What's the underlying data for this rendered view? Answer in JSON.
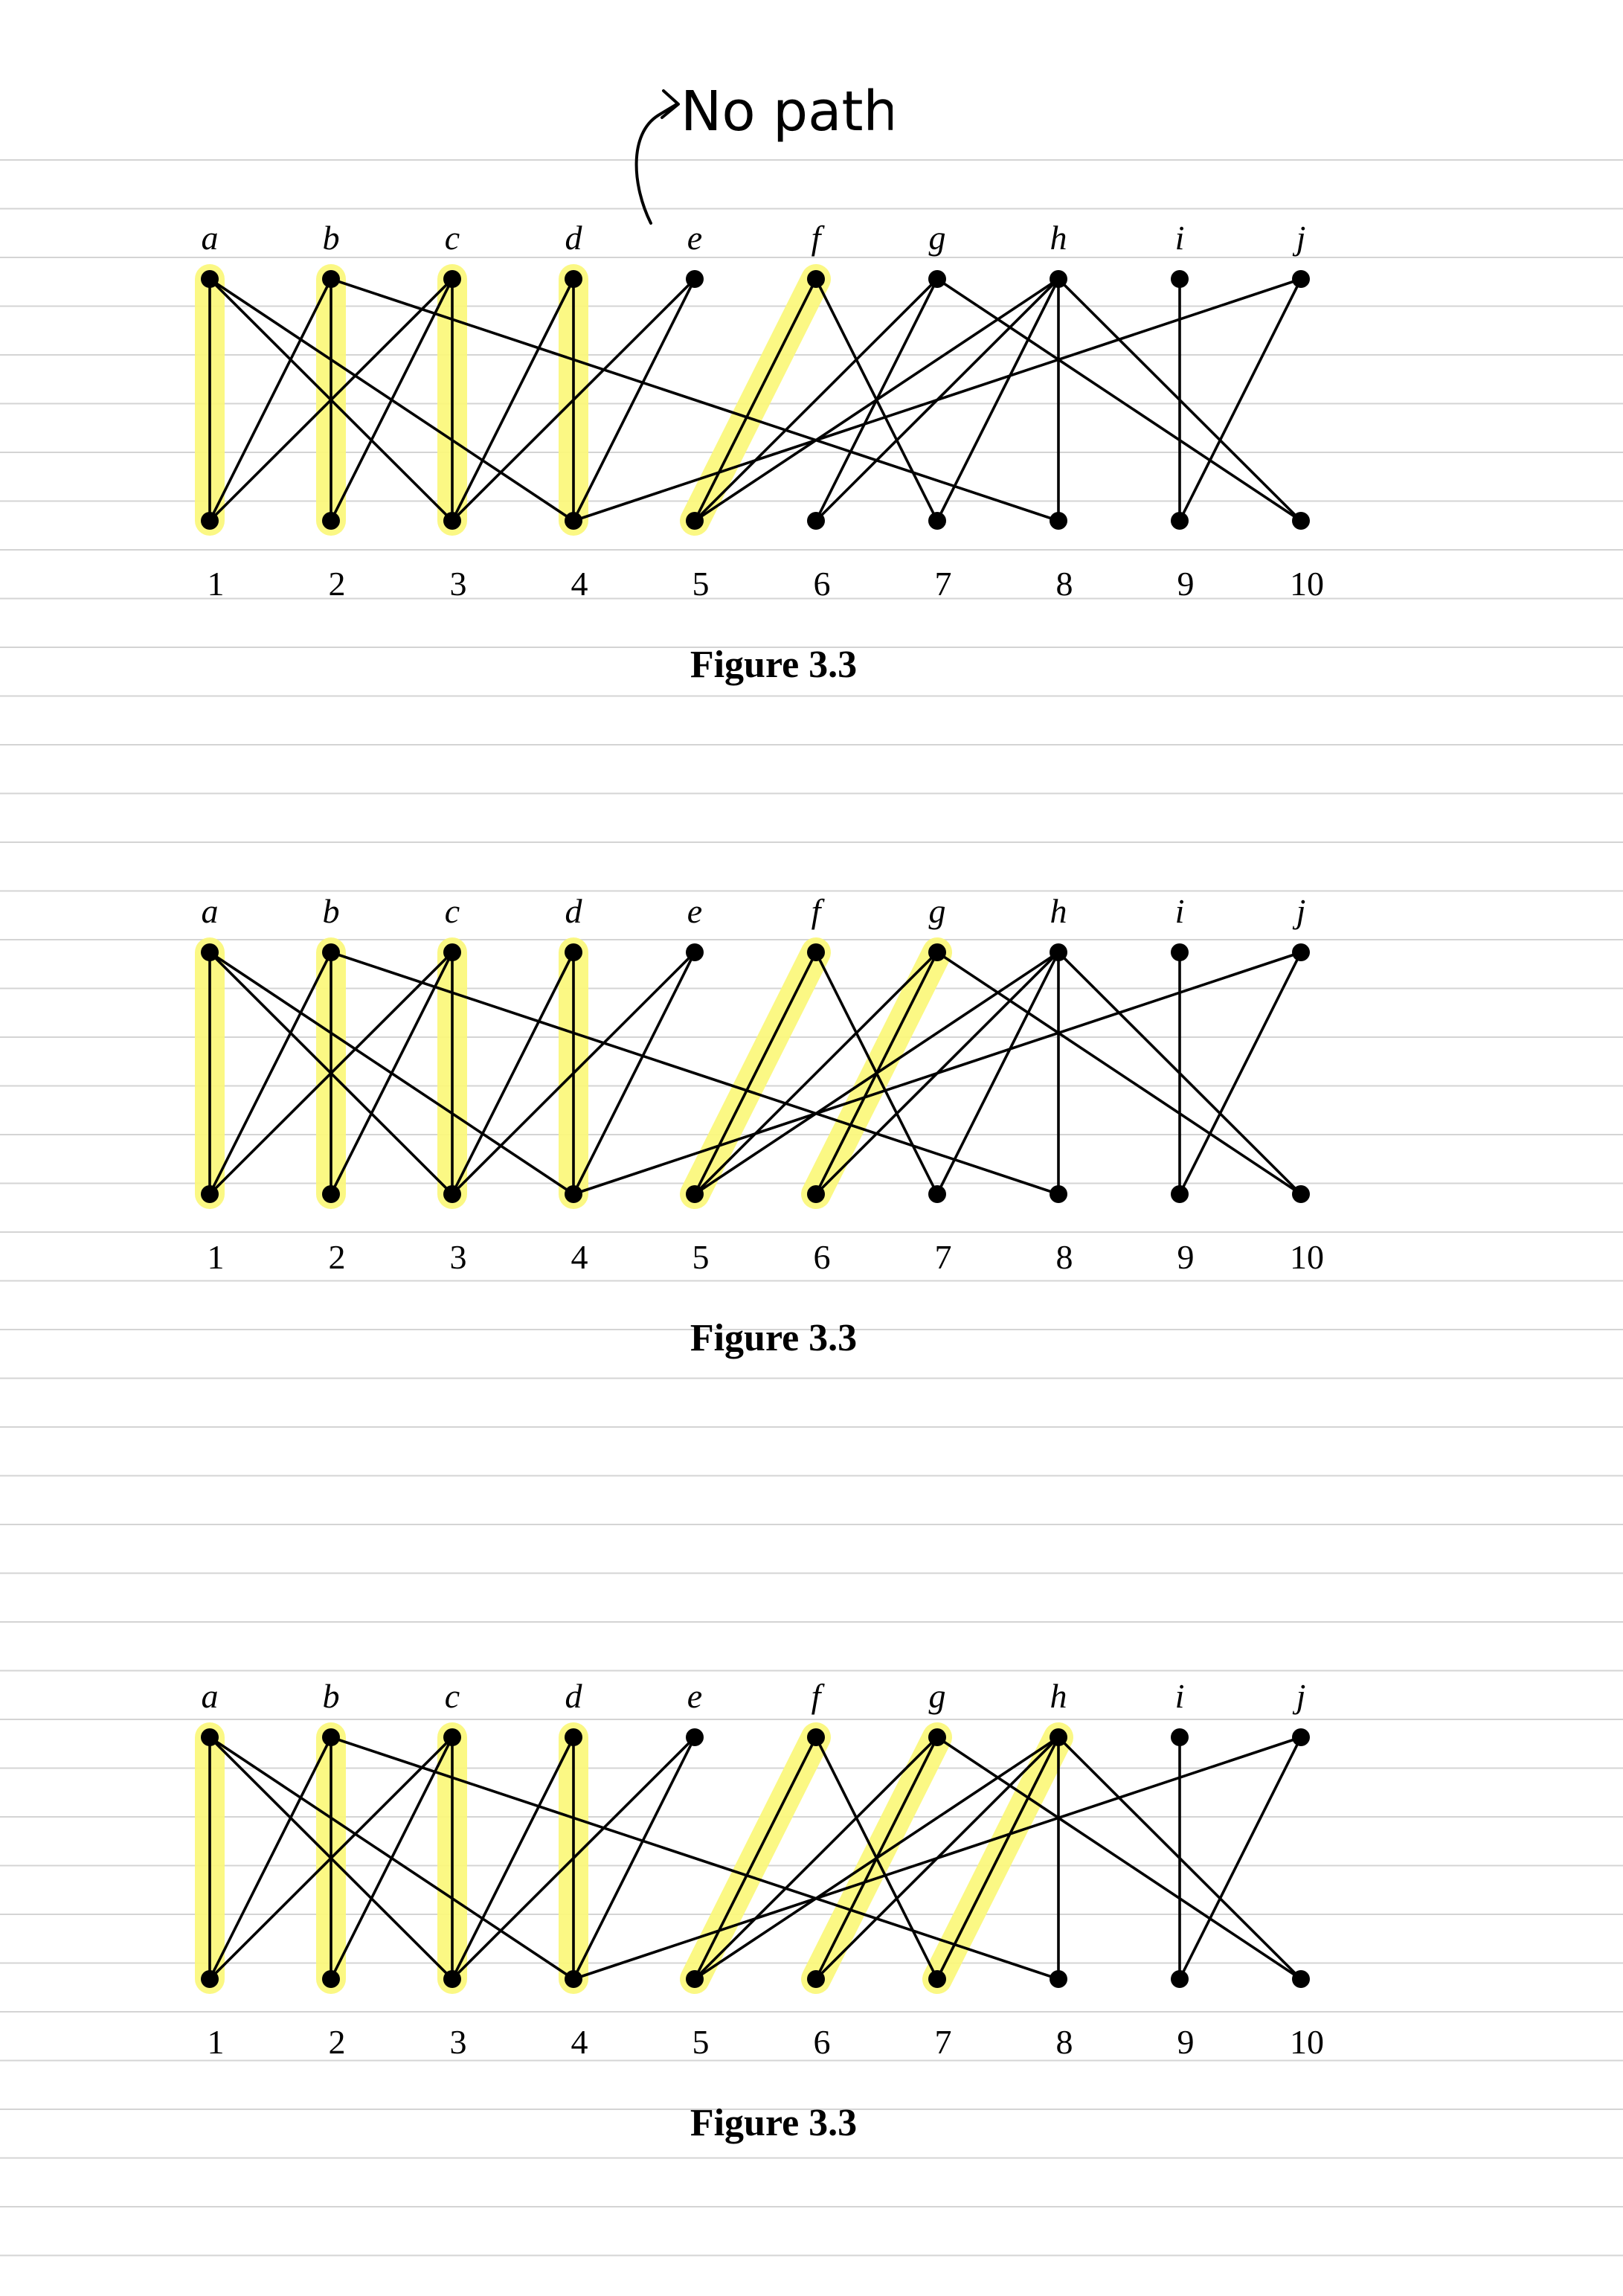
{
  "annotation": {
    "text": "No path"
  },
  "graph": {
    "top_labels": [
      "a",
      "b",
      "c",
      "d",
      "e",
      "f",
      "g",
      "h",
      "i",
      "j"
    ],
    "bottom_labels": [
      "1",
      "2",
      "3",
      "4",
      "5",
      "6",
      "7",
      "8",
      "9",
      "10"
    ],
    "edges": [
      [
        "a",
        "1"
      ],
      [
        "a",
        "3"
      ],
      [
        "a",
        "4"
      ],
      [
        "b",
        "1"
      ],
      [
        "b",
        "2"
      ],
      [
        "b",
        "8"
      ],
      [
        "c",
        "1"
      ],
      [
        "c",
        "2"
      ],
      [
        "c",
        "3"
      ],
      [
        "d",
        "3"
      ],
      [
        "d",
        "4"
      ],
      [
        "e",
        "3"
      ],
      [
        "e",
        "4"
      ],
      [
        "f",
        "5"
      ],
      [
        "f",
        "7"
      ],
      [
        "g",
        "5"
      ],
      [
        "g",
        "6"
      ],
      [
        "g",
        "10"
      ],
      [
        "h",
        "5"
      ],
      [
        "h",
        "6"
      ],
      [
        "h",
        "7"
      ],
      [
        "h",
        "8"
      ],
      [
        "h",
        "10"
      ],
      [
        "i",
        "9"
      ],
      [
        "j",
        "4"
      ],
      [
        "j",
        "9"
      ]
    ]
  },
  "figures": [
    {
      "caption": "Figure 3.3",
      "matching": [
        [
          "a",
          "1"
        ],
        [
          "b",
          "2"
        ],
        [
          "c",
          "3"
        ],
        [
          "d",
          "4"
        ],
        [
          "f",
          "5"
        ]
      ]
    },
    {
      "caption": "Figure 3.3",
      "matching": [
        [
          "a",
          "1"
        ],
        [
          "b",
          "2"
        ],
        [
          "c",
          "3"
        ],
        [
          "d",
          "4"
        ],
        [
          "f",
          "5"
        ],
        [
          "g",
          "6"
        ]
      ]
    },
    {
      "caption": "Figure 3.3",
      "matching": [
        [
          "a",
          "1"
        ],
        [
          "b",
          "2"
        ],
        [
          "c",
          "3"
        ],
        [
          "d",
          "4"
        ],
        [
          "f",
          "5"
        ],
        [
          "g",
          "6"
        ],
        [
          "h",
          "7"
        ]
      ]
    }
  ]
}
